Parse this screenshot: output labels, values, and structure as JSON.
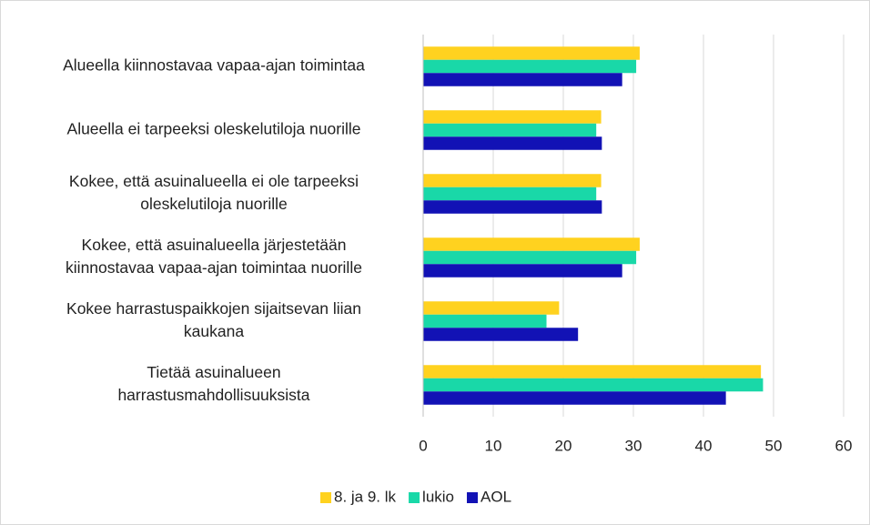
{
  "chart_data": {
    "type": "bar",
    "orientation": "horizontal",
    "categories": [
      "Alueella kiinnostavaa vapaa-ajan toimintaa",
      "Alueella ei tarpeeksi oleskelutiloja nuorille",
      "Kokee, että asuinalueella ei ole tarpeeksi\noleskelutiloja nuorille",
      "Kokee, että asuinalueella järjestetään\nkiinnostavaa vapaa-ajan toimintaa nuorille",
      "Kokee harrastuspaikkojen sijaitsevan liian\nkaukana",
      "Tietää asuinalueen\nharrastusmahdollisuuksista"
    ],
    "series": [
      {
        "name": "8. ja 9. lk",
        "color": "#ffd21f",
        "values": [
          30.9,
          25.4,
          25.4,
          30.9,
          19.4,
          48.2
        ]
      },
      {
        "name": "lukio",
        "color": "#19d8a8",
        "values": [
          30.4,
          24.7,
          24.7,
          30.4,
          17.6,
          48.5
        ]
      },
      {
        "name": "AOL",
        "color": "#1212b5",
        "values": [
          28.4,
          25.5,
          25.5,
          28.4,
          22.1,
          43.2
        ]
      }
    ],
    "xlim": [
      0,
      60
    ],
    "xticks": [
      0,
      10,
      20,
      30,
      40,
      50,
      60
    ],
    "grid": true,
    "legend": "bottom"
  }
}
